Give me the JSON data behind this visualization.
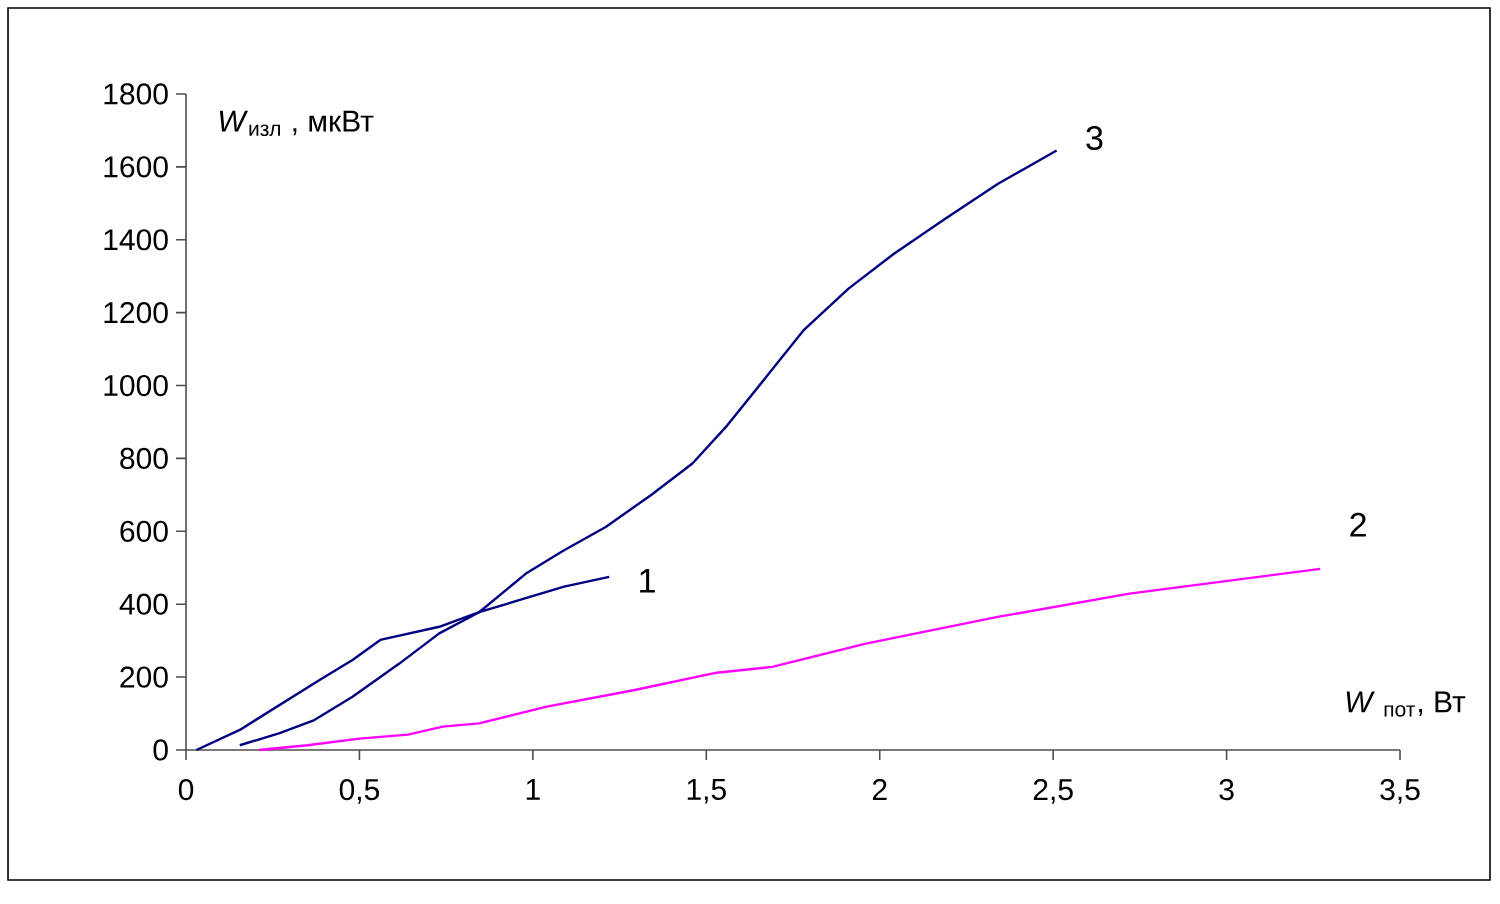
{
  "chart_data": {
    "type": "line",
    "xlabel": "*W* $_{пот}$, Вт",
    "ylabel": "*W*$_{изл}$ , мкВт",
    "xlim": [
      0,
      3.5
    ],
    "ylim": [
      0,
      1800
    ],
    "xticks": [
      0,
      {
        "value": 0.5,
        "label": "0,5"
      },
      1,
      {
        "value": 1.5,
        "label": "1,5"
      },
      2,
      {
        "value": 2.5,
        "label": "2,5"
      },
      3,
      {
        "value": 3.5,
        "label": "3,5"
      }
    ],
    "yticks": [
      0,
      200,
      400,
      600,
      800,
      1000,
      1200,
      1400,
      1600,
      1800
    ],
    "grid": false,
    "legend": false,
    "series": [
      {
        "name": "1",
        "color": "#000080",
        "x": [
          0.03,
          0.155,
          0.385,
          0.48,
          0.56,
          0.73,
          0.845,
          0.96,
          1.09,
          1.22
        ],
        "values": [
          0,
          55,
          192,
          247,
          302,
          338,
          378,
          411,
          448,
          475
        ]
      },
      {
        "name": "2",
        "color": "#ff00ff",
        "x": [
          0.21,
          0.35,
          0.5,
          0.64,
          0.74,
          0.845,
          1.04,
          1.29,
          1.53,
          1.69,
          1.96,
          2.34,
          2.72,
          3.27
        ],
        "values": [
          0,
          13,
          31,
          42,
          64,
          73,
          119,
          164,
          212,
          228,
          292,
          365,
          429,
          497
        ]
      },
      {
        "name": "3",
        "color": "#000080",
        "x": [
          0.155,
          0.27,
          0.37,
          0.48,
          0.615,
          0.73,
          0.845,
          0.98,
          1.09,
          1.21,
          1.34,
          1.46,
          1.56,
          1.68,
          1.78,
          1.91,
          2.04,
          2.19,
          2.34,
          2.51
        ],
        "values": [
          13,
          46,
          82,
          146,
          237,
          320,
          378,
          484,
          548,
          612,
          699,
          786,
          890,
          1032,
          1151,
          1266,
          1361,
          1458,
          1553,
          1645
        ]
      }
    ]
  }
}
